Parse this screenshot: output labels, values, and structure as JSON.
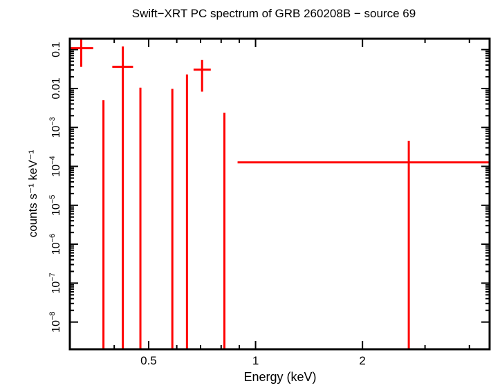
{
  "chart_data": {
    "type": "scatter",
    "title": "Swift−XRT PC spectrum of GRB 260208B − source 69",
    "xlabel": "Energy (keV)",
    "ylabel": "counts s⁻¹ keV⁻¹",
    "x_scale": "log",
    "y_scale": "log",
    "xlim": [
      0.3,
      4.56
    ],
    "ylim": [
      2e-09,
      0.19
    ],
    "x_ticks": [
      {
        "value": 0.5,
        "label": "0.5"
      },
      {
        "value": 1,
        "label": "1"
      },
      {
        "value": 2,
        "label": "2"
      }
    ],
    "x_minor_ticks": [
      0.3,
      0.4,
      0.6,
      0.7,
      0.8,
      0.9,
      3,
      4
    ],
    "y_ticks": [
      {
        "value": 0.1,
        "base": "0.1",
        "exp": ""
      },
      {
        "value": 0.01,
        "base": "0.01",
        "exp": ""
      },
      {
        "value": 0.001,
        "base": "10",
        "exp": "−3"
      },
      {
        "value": 0.0001,
        "base": "10",
        "exp": "−4"
      },
      {
        "value": 1e-05,
        "base": "10",
        "exp": "−5"
      },
      {
        "value": 1e-06,
        "base": "10",
        "exp": "−6"
      },
      {
        "value": 1e-07,
        "base": "10",
        "exp": "−7"
      },
      {
        "value": 1e-08,
        "base": "10",
        "exp": "−8"
      }
    ],
    "color": "#ff0000",
    "grid": false,
    "points": [
      {
        "x": 0.323,
        "xlo": 0.3,
        "xhi": 0.349,
        "y": 0.109,
        "ylo": 0.036,
        "yhi": 0.2
      },
      {
        "x": 0.373,
        "y": null,
        "ylo": null,
        "yhi": 0.005
      },
      {
        "x": 0.423,
        "xlo": 0.395,
        "xhi": 0.452,
        "y": 0.036,
        "ylo": null,
        "yhi": 0.12
      },
      {
        "x": 0.474,
        "y": null,
        "ylo": null,
        "yhi": 0.0105
      },
      {
        "x": 0.583,
        "y": null,
        "ylo": null,
        "yhi": 0.0098
      },
      {
        "x": 0.641,
        "y": null,
        "ylo": null,
        "yhi": 0.023
      },
      {
        "x": 0.707,
        "xlo": 0.669,
        "xhi": 0.748,
        "y": 0.0305,
        "ylo": 0.0083,
        "yhi": 0.054
      },
      {
        "x": 0.817,
        "y": null,
        "ylo": null,
        "yhi": 0.0024
      },
      {
        "x": 2.7,
        "xlo": 0.89,
        "xhi": 4.56,
        "y": 0.000127,
        "ylo": null,
        "yhi": 0.00045
      }
    ]
  }
}
